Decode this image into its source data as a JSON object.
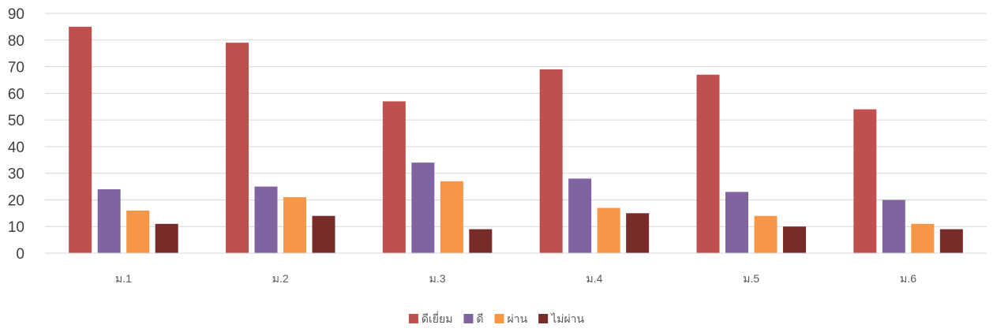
{
  "chart_data": {
    "type": "bar",
    "categories": [
      "ม.1",
      "ม.2",
      "ม.3",
      "ม.4",
      "ม.5",
      "ม.6"
    ],
    "series": [
      {
        "name": "ดีเยี่ยม",
        "color": "#c0504d",
        "values": [
          85,
          79,
          57,
          69,
          67,
          54
        ]
      },
      {
        "name": "ดี",
        "color": "#8064a2",
        "values": [
          24,
          25,
          34,
          28,
          23,
          20
        ]
      },
      {
        "name": "ผ่าน",
        "color": "#f79646",
        "values": [
          16,
          21,
          27,
          17,
          14,
          11
        ]
      },
      {
        "name": "ไม่ผ่าน",
        "color": "#772c2a",
        "values": [
          11,
          14,
          9,
          15,
          10,
          9
        ]
      }
    ],
    "ylim": [
      0,
      90
    ],
    "yticks": [
      0,
      10,
      20,
      30,
      40,
      50,
      60,
      70,
      80,
      90
    ],
    "title": "",
    "xlabel": "",
    "ylabel": "",
    "grid": true,
    "legend_position": "bottom"
  }
}
